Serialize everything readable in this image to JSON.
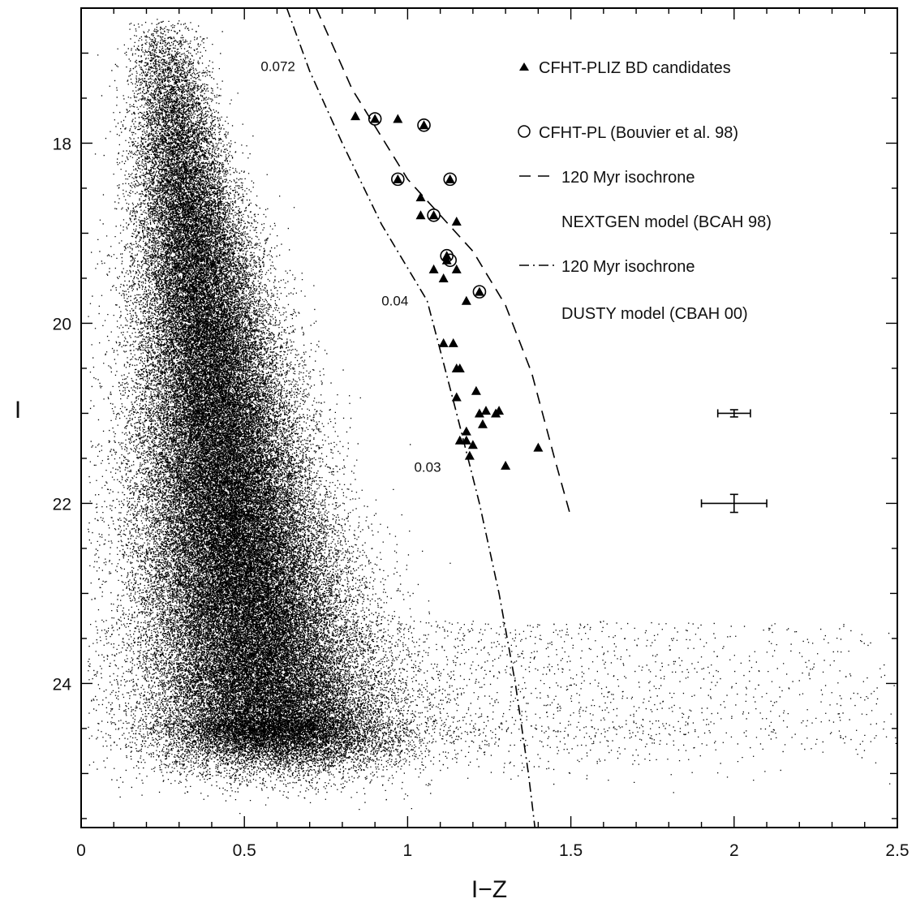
{
  "chart_data": {
    "type": "scatter",
    "title": "",
    "xlabel": "I−Z",
    "ylabel": "I",
    "xlim": [
      0,
      2.5
    ],
    "ylim": [
      25.6,
      16.5
    ],
    "y_inverted": true,
    "xticks": [
      "0",
      "0.5",
      "1",
      "1.5",
      "2",
      "2.5"
    ],
    "xtick_values": [
      0,
      0.5,
      1,
      1.5,
      2,
      2.5
    ],
    "yticks": [
      "18",
      "20",
      "22",
      "24"
    ],
    "ytick_values": [
      18,
      20,
      22,
      24
    ],
    "grid": false,
    "legend_position": "top-right",
    "background_field": {
      "description_color": "#000000",
      "ridge": [
        [
          16.8,
          0.25
        ],
        [
          18,
          0.3
        ],
        [
          20,
          0.38
        ],
        [
          22,
          0.45
        ],
        [
          23,
          0.5
        ],
        [
          24,
          0.55
        ],
        [
          24.6,
          0.6
        ]
      ]
    },
    "series": [
      {
        "name": "CFHT-PLIZ BD candidates",
        "marker": "triangle",
        "points": [
          [
            0.84,
            17.7
          ],
          [
            0.9,
            17.73
          ],
          [
            0.97,
            17.73
          ],
          [
            1.05,
            17.8
          ],
          [
            0.97,
            18.4
          ],
          [
            1.13,
            18.4
          ],
          [
            1.04,
            18.6
          ],
          [
            1.04,
            18.8
          ],
          [
            1.08,
            18.8
          ],
          [
            1.15,
            18.87
          ],
          [
            1.12,
            19.25
          ],
          [
            1.12,
            19.3
          ],
          [
            1.08,
            19.4
          ],
          [
            1.15,
            19.4
          ],
          [
            1.11,
            19.5
          ],
          [
            1.22,
            19.65
          ],
          [
            1.18,
            19.75
          ],
          [
            1.11,
            20.22
          ],
          [
            1.14,
            20.22
          ],
          [
            1.15,
            20.5
          ],
          [
            1.16,
            20.5
          ],
          [
            1.21,
            20.75
          ],
          [
            1.15,
            20.82
          ],
          [
            1.24,
            20.97
          ],
          [
            1.22,
            21.0
          ],
          [
            1.28,
            20.97
          ],
          [
            1.27,
            21.0
          ],
          [
            1.23,
            21.12
          ],
          [
            1.18,
            21.2
          ],
          [
            1.16,
            21.3
          ],
          [
            1.18,
            21.3
          ],
          [
            1.2,
            21.35
          ],
          [
            1.4,
            21.38
          ],
          [
            1.19,
            21.47
          ],
          [
            1.3,
            21.58
          ]
        ]
      },
      {
        "name": "CFHT-PL (Bouvier et al. 98)",
        "marker": "circle",
        "points": [
          [
            0.9,
            17.73
          ],
          [
            1.05,
            17.8
          ],
          [
            0.97,
            18.4
          ],
          [
            1.13,
            18.4
          ],
          [
            1.08,
            18.8
          ],
          [
            1.12,
            19.25
          ],
          [
            1.13,
            19.3
          ],
          [
            1.22,
            19.65
          ]
        ]
      },
      {
        "name": "120 Myr isochrone",
        "model": "NEXTGEN model (BCAH 98)",
        "style": "dashed",
        "points": [
          [
            0.72,
            16.5
          ],
          [
            0.83,
            17.4
          ],
          [
            1.0,
            18.4
          ],
          [
            1.2,
            19.2
          ],
          [
            1.3,
            19.8
          ],
          [
            1.38,
            20.55
          ],
          [
            1.45,
            21.5
          ],
          [
            1.5,
            22.15
          ]
        ]
      },
      {
        "name": "120 Myr isochrone",
        "model": "DUSTY model (CBAH 00)",
        "style": "dashdot",
        "points": [
          [
            0.63,
            16.5
          ],
          [
            0.7,
            17.2
          ],
          [
            0.8,
            18.0
          ],
          [
            0.92,
            18.9
          ],
          [
            1.06,
            19.75
          ],
          [
            1.1,
            20.3
          ],
          [
            1.15,
            21.0
          ],
          [
            1.22,
            22.0
          ],
          [
            1.28,
            23.0
          ],
          [
            1.33,
            24.0
          ],
          [
            1.37,
            25.0
          ],
          [
            1.39,
            25.6
          ]
        ]
      }
    ],
    "error_bars": [
      {
        "x": 2.0,
        "y": 21.0,
        "xerr": 0.05,
        "yerr": 0.04
      },
      {
        "x": 2.0,
        "y": 22.0,
        "xerr": 0.1,
        "yerr": 0.1
      }
    ],
    "annotations": [
      {
        "text": "0.072",
        "x": 0.55,
        "y": 17.2
      },
      {
        "text": "0.04",
        "x": 0.92,
        "y": 19.8
      },
      {
        "text": "0.03",
        "x": 1.02,
        "y": 21.65
      }
    ],
    "legend": [
      {
        "symbol": "triangle",
        "text": "CFHT-PLIZ BD candidates"
      },
      {
        "symbol": "circle",
        "text": "CFHT-PL (Bouvier et al. 98)"
      },
      {
        "symbol": "dashed",
        "text": "120 Myr  isochrone"
      },
      {
        "symbol": "none",
        "text": "NEXTGEN model (BCAH 98)"
      },
      {
        "symbol": "dashdot",
        "text": "120 Myr  isochrone"
      },
      {
        "symbol": "none",
        "text": "DUSTY model (CBAH 00)"
      }
    ]
  }
}
